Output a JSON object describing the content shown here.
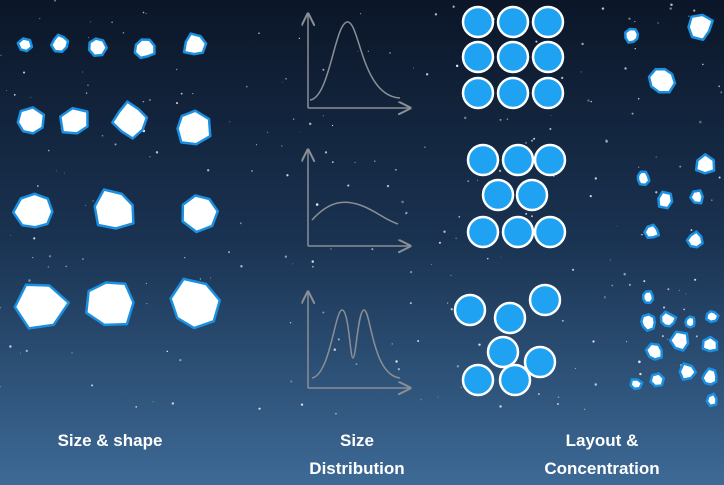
{
  "columns": [
    {
      "label": [
        "Size & shape"
      ]
    },
    {
      "label": [
        "Size",
        "Distribution"
      ]
    },
    {
      "label": [
        "Layout &",
        "Concentration"
      ]
    }
  ]
}
